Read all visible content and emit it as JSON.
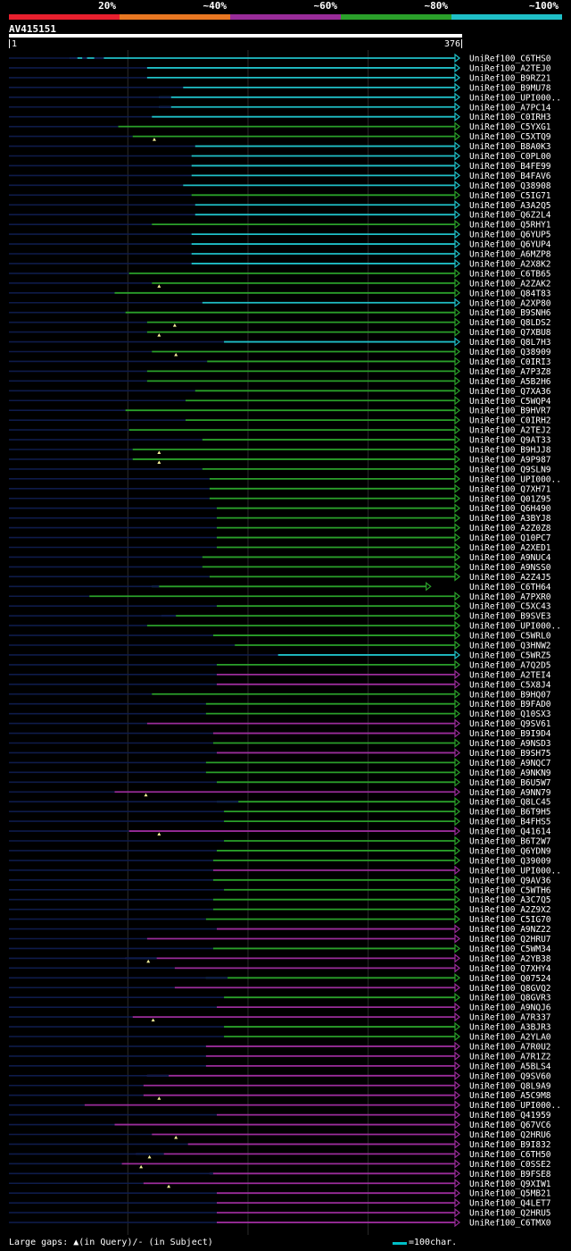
{
  "legend": [
    {
      "label": "20%",
      "color": "#e8202e"
    },
    {
      "label": "~40%",
      "color": "#e87722"
    },
    {
      "label": "~60%",
      "color": "#9a2c9a"
    },
    {
      "label": "~80%",
      "color": "#2aa02a"
    },
    {
      "label": "~100%",
      "color": "#1fbfc7"
    }
  ],
  "query": {
    "id": "AV415151",
    "start": "1",
    "end": "376",
    "length": 376
  },
  "hits": [
    {
      "name": "UniRef100_C6THS0",
      "start": 52,
      "end": 376,
      "color": "cyan",
      "gaps": [
        [
          52,
          58
        ],
        [
          62,
          66
        ],
        [
          72,
          80
        ]
      ],
      "qgap": []
    },
    {
      "name": "UniRef100_A2TEJ0",
      "start": 116,
      "end": 376,
      "color": "cyan",
      "gaps": [],
      "qgap": []
    },
    {
      "name": "UniRef100_B9RZ21",
      "start": 116,
      "end": 376,
      "color": "cyan",
      "gaps": [],
      "qgap": []
    },
    {
      "name": "UniRef100_B9MU78",
      "start": 146,
      "end": 376,
      "color": "cyan",
      "gaps": [],
      "qgap": []
    },
    {
      "name": "UniRef100_UPI000..",
      "start": 126,
      "end": 376,
      "color": "cyan",
      "gaps": [
        [
          126,
          136
        ]
      ],
      "qgap": []
    },
    {
      "name": "UniRef100_A7PC14",
      "start": 126,
      "end": 376,
      "color": "cyan",
      "gaps": [
        [
          126,
          136
        ]
      ],
      "qgap": []
    },
    {
      "name": "UniRef100_C0IRH3",
      "start": 120,
      "end": 376,
      "color": "cyan",
      "gaps": [],
      "qgap": []
    },
    {
      "name": "UniRef100_C5YXG1",
      "start": 92,
      "end": 376,
      "color": "green",
      "gaps": [],
      "qgap": []
    },
    {
      "name": "UniRef100_C5XTQ9",
      "start": 104,
      "end": 376,
      "color": "green",
      "gaps": [],
      "qgap": [
        122
      ]
    },
    {
      "name": "UniRef100_B8A0K3",
      "start": 156,
      "end": 376,
      "color": "cyan",
      "gaps": [],
      "qgap": []
    },
    {
      "name": "UniRef100_C0PL00",
      "start": 153,
      "end": 376,
      "color": "cyan",
      "gaps": [],
      "qgap": []
    },
    {
      "name": "UniRef100_B4FE99",
      "start": 153,
      "end": 376,
      "color": "cyan",
      "gaps": [],
      "qgap": []
    },
    {
      "name": "UniRef100_B4FAV6",
      "start": 153,
      "end": 376,
      "color": "cyan",
      "gaps": [],
      "qgap": []
    },
    {
      "name": "UniRef100_Q38908",
      "start": 146,
      "end": 376,
      "color": "cyan",
      "gaps": [],
      "qgap": []
    },
    {
      "name": "UniRef100_C5IG71",
      "start": 153,
      "end": 376,
      "color": "green",
      "gaps": [],
      "qgap": []
    },
    {
      "name": "UniRef100_A3A2Q5",
      "start": 156,
      "end": 376,
      "color": "cyan",
      "gaps": [],
      "qgap": []
    },
    {
      "name": "UniRef100_Q6Z2L4",
      "start": 156,
      "end": 376,
      "color": "cyan",
      "gaps": [],
      "qgap": []
    },
    {
      "name": "UniRef100_Q5RHY1",
      "start": 120,
      "end": 376,
      "color": "green",
      "gaps": [],
      "qgap": []
    },
    {
      "name": "UniRef100_Q6YUP5",
      "start": 153,
      "end": 376,
      "color": "cyan",
      "gaps": [],
      "qgap": []
    },
    {
      "name": "UniRef100_Q6YUP4",
      "start": 153,
      "end": 376,
      "color": "cyan",
      "gaps": [],
      "qgap": []
    },
    {
      "name": "UniRef100_A6MZP8",
      "start": 153,
      "end": 376,
      "color": "cyan",
      "gaps": [],
      "qgap": []
    },
    {
      "name": "UniRef100_A2X8K2",
      "start": 153,
      "end": 376,
      "color": "cyan",
      "gaps": [],
      "qgap": []
    },
    {
      "name": "UniRef100_C6TB65",
      "start": 101,
      "end": 376,
      "color": "green",
      "gaps": [],
      "qgap": []
    },
    {
      "name": "UniRef100_A2ZAK2",
      "start": 120,
      "end": 376,
      "color": "green",
      "gaps": [],
      "qgap": [
        126
      ]
    },
    {
      "name": "UniRef100_Q84T83",
      "start": 89,
      "end": 376,
      "color": "green",
      "gaps": [],
      "qgap": []
    },
    {
      "name": "UniRef100_A2XP80",
      "start": 162,
      "end": 376,
      "color": "cyan",
      "gaps": [],
      "qgap": []
    },
    {
      "name": "UniRef100_B9SNH6",
      "start": 98,
      "end": 376,
      "color": "green",
      "gaps": [],
      "qgap": []
    },
    {
      "name": "UniRef100_Q8LDS2",
      "start": 116,
      "end": 376,
      "color": "green",
      "gaps": [],
      "qgap": [
        139
      ]
    },
    {
      "name": "UniRef100_Q7XBU8",
      "start": 116,
      "end": 376,
      "color": "green",
      "gaps": [],
      "qgap": [
        126
      ]
    },
    {
      "name": "UniRef100_Q8L7H3",
      "start": 180,
      "end": 376,
      "color": "cyan",
      "gaps": [],
      "qgap": []
    },
    {
      "name": "UniRef100_Q38909",
      "start": 120,
      "end": 376,
      "color": "green",
      "gaps": [],
      "qgap": [
        140
      ]
    },
    {
      "name": "UniRef100_C0IRI3",
      "start": 166,
      "end": 376,
      "color": "green",
      "gaps": [],
      "qgap": []
    },
    {
      "name": "UniRef100_A7P3Z8",
      "start": 116,
      "end": 376,
      "color": "green",
      "gaps": [],
      "qgap": []
    },
    {
      "name": "UniRef100_A5B2H6",
      "start": 116,
      "end": 376,
      "color": "green",
      "gaps": [],
      "qgap": []
    },
    {
      "name": "UniRef100_Q7XA36",
      "start": 156,
      "end": 376,
      "color": "green",
      "gaps": [],
      "qgap": []
    },
    {
      "name": "UniRef100_C5WQP4",
      "start": 148,
      "end": 376,
      "color": "green",
      "gaps": [],
      "qgap": []
    },
    {
      "name": "UniRef100_B9HVR7",
      "start": 98,
      "end": 376,
      "color": "green",
      "gaps": [],
      "qgap": []
    },
    {
      "name": "UniRef100_C0IRH2",
      "start": 148,
      "end": 376,
      "color": "green",
      "gaps": [],
      "qgap": []
    },
    {
      "name": "UniRef100_A2TEJ2",
      "start": 101,
      "end": 376,
      "color": "green",
      "gaps": [],
      "qgap": []
    },
    {
      "name": "UniRef100_Q9AT33",
      "start": 162,
      "end": 376,
      "color": "green",
      "gaps": [],
      "qgap": []
    },
    {
      "name": "UniRef100_B9HJJ8",
      "start": 104,
      "end": 376,
      "color": "green",
      "gaps": [],
      "qgap": [
        126
      ]
    },
    {
      "name": "UniRef100_A9P987",
      "start": 104,
      "end": 376,
      "color": "green",
      "gaps": [],
      "qgap": [
        126
      ]
    },
    {
      "name": "UniRef100_Q9SLN9",
      "start": 162,
      "end": 376,
      "color": "green",
      "gaps": [],
      "qgap": []
    },
    {
      "name": "UniRef100_UPI000..",
      "start": 168,
      "end": 376,
      "color": "green",
      "gaps": [],
      "qgap": []
    },
    {
      "name": "UniRef100_Q7XH71",
      "start": 168,
      "end": 376,
      "color": "green",
      "gaps": [],
      "qgap": []
    },
    {
      "name": "UniRef100_Q01Z95",
      "start": 168,
      "end": 376,
      "color": "green",
      "gaps": [],
      "qgap": []
    },
    {
      "name": "UniRef100_Q6H490",
      "start": 174,
      "end": 376,
      "color": "green",
      "gaps": [],
      "qgap": []
    },
    {
      "name": "UniRef100_A3BYJ8",
      "start": 174,
      "end": 376,
      "color": "green",
      "gaps": [],
      "qgap": []
    },
    {
      "name": "UniRef100_A2Z0Z8",
      "start": 174,
      "end": 376,
      "color": "green",
      "gaps": [],
      "qgap": []
    },
    {
      "name": "UniRef100_Q10PC7",
      "start": 174,
      "end": 376,
      "color": "green",
      "gaps": [],
      "qgap": []
    },
    {
      "name": "UniRef100_A2XED1",
      "start": 174,
      "end": 376,
      "color": "green",
      "gaps": [],
      "qgap": []
    },
    {
      "name": "UniRef100_A9NUC4",
      "start": 162,
      "end": 376,
      "color": "green",
      "gaps": [],
      "qgap": []
    },
    {
      "name": "UniRef100_A9NSS0",
      "start": 162,
      "end": 376,
      "color": "green",
      "gaps": [],
      "qgap": []
    },
    {
      "name": "UniRef100_A2Z4J5",
      "start": 168,
      "end": 376,
      "color": "green",
      "gaps": [],
      "qgap": []
    },
    {
      "name": "UniRef100_C6TH64",
      "start": 120,
      "end": 352,
      "color": "green",
      "gaps": [
        [
          120,
          126
        ]
      ],
      "qgap": []
    },
    {
      "name": "UniRef100_A7PXR0",
      "start": 68,
      "end": 376,
      "color": "green",
      "gaps": [],
      "qgap": []
    },
    {
      "name": "UniRef100_C5XC43",
      "start": 174,
      "end": 376,
      "color": "green",
      "gaps": [],
      "qgap": []
    },
    {
      "name": "UniRef100_B9SVE3",
      "start": 128,
      "end": 376,
      "color": "green",
      "gaps": [
        [
          128,
          140
        ]
      ],
      "qgap": []
    },
    {
      "name": "UniRef100_UPI000..",
      "start": 116,
      "end": 376,
      "color": "green",
      "gaps": [],
      "qgap": []
    },
    {
      "name": "UniRef100_C5WRL0",
      "start": 171,
      "end": 376,
      "color": "green",
      "gaps": [],
      "qgap": []
    },
    {
      "name": "UniRef100_Q3HNW2",
      "start": 189,
      "end": 376,
      "color": "green",
      "gaps": [],
      "qgap": []
    },
    {
      "name": "UniRef100_C5WRZ5",
      "start": 225,
      "end": 376,
      "color": "cyan",
      "gaps": [],
      "qgap": []
    },
    {
      "name": "UniRef100_A7Q2D5",
      "start": 174,
      "end": 376,
      "color": "green",
      "gaps": [],
      "qgap": []
    },
    {
      "name": "UniRef100_A2TEI4",
      "start": 174,
      "end": 376,
      "color": "purple",
      "gaps": [],
      "qgap": []
    },
    {
      "name": "UniRef100_C5X8J4",
      "start": 174,
      "end": 376,
      "color": "purple",
      "gaps": [],
      "qgap": []
    },
    {
      "name": "UniRef100_B9HQ07",
      "start": 120,
      "end": 376,
      "color": "green",
      "gaps": [],
      "qgap": []
    },
    {
      "name": "UniRef100_B9FAD0",
      "start": 165,
      "end": 376,
      "color": "green",
      "gaps": [],
      "qgap": []
    },
    {
      "name": "UniRef100_Q10SX3",
      "start": 165,
      "end": 376,
      "color": "green",
      "gaps": [],
      "qgap": []
    },
    {
      "name": "UniRef100_Q9SV61",
      "start": 116,
      "end": 376,
      "color": "purple",
      "gaps": [],
      "qgap": []
    },
    {
      "name": "UniRef100_B9I9D4",
      "start": 171,
      "end": 376,
      "color": "purple",
      "gaps": [],
      "qgap": []
    },
    {
      "name": "UniRef100_A9NSD3",
      "start": 171,
      "end": 376,
      "color": "green",
      "gaps": [],
      "qgap": []
    },
    {
      "name": "UniRef100_B9SH75",
      "start": 174,
      "end": 376,
      "color": "purple",
      "gaps": [],
      "qgap": []
    },
    {
      "name": "UniRef100_A9NQC7",
      "start": 165,
      "end": 376,
      "color": "green",
      "gaps": [],
      "qgap": []
    },
    {
      "name": "UniRef100_A9NKN9",
      "start": 165,
      "end": 376,
      "color": "green",
      "gaps": [],
      "qgap": []
    },
    {
      "name": "UniRef100_B6U5W7",
      "start": 174,
      "end": 376,
      "color": "green",
      "gaps": [],
      "qgap": []
    },
    {
      "name": "UniRef100_A9NN79",
      "start": 89,
      "end": 376,
      "color": "purple",
      "gaps": [],
      "qgap": [
        115
      ]
    },
    {
      "name": "UniRef100_Q8LC45",
      "start": 174,
      "end": 376,
      "color": "green",
      "gaps": [
        [
          174,
          192
        ]
      ],
      "qgap": []
    },
    {
      "name": "UniRef100_B6T9H5",
      "start": 180,
      "end": 376,
      "color": "green",
      "gaps": [],
      "qgap": []
    },
    {
      "name": "UniRef100_B4FHS5",
      "start": 180,
      "end": 376,
      "color": "green",
      "gaps": [],
      "qgap": []
    },
    {
      "name": "UniRef100_Q41614",
      "start": 101,
      "end": 376,
      "color": "purple",
      "gaps": [],
      "qgap": [
        126
      ]
    },
    {
      "name": "UniRef100_B6T2W7",
      "start": 180,
      "end": 376,
      "color": "green",
      "gaps": [],
      "qgap": []
    },
    {
      "name": "UniRef100_Q6YDN9",
      "start": 174,
      "end": 376,
      "color": "green",
      "gaps": [],
      "qgap": []
    },
    {
      "name": "UniRef100_Q39009",
      "start": 171,
      "end": 376,
      "color": "green",
      "gaps": [],
      "qgap": []
    },
    {
      "name": "UniRef100_UPI000..",
      "start": 171,
      "end": 376,
      "color": "purple",
      "gaps": [],
      "qgap": []
    },
    {
      "name": "UniRef100_Q9AV36",
      "start": 171,
      "end": 376,
      "color": "green",
      "gaps": [],
      "qgap": []
    },
    {
      "name": "UniRef100_C5WTH6",
      "start": 180,
      "end": 376,
      "color": "green",
      "gaps": [],
      "qgap": []
    },
    {
      "name": "UniRef100_A3C7Q5",
      "start": 171,
      "end": 376,
      "color": "green",
      "gaps": [],
      "qgap": []
    },
    {
      "name": "UniRef100_A2Z9X2",
      "start": 171,
      "end": 376,
      "color": "green",
      "gaps": [],
      "qgap": []
    },
    {
      "name": "UniRef100_C5IG70",
      "start": 165,
      "end": 376,
      "color": "green",
      "gaps": [],
      "qgap": []
    },
    {
      "name": "UniRef100_A9NZ22",
      "start": 174,
      "end": 376,
      "color": "purple",
      "gaps": [],
      "qgap": []
    },
    {
      "name": "UniRef100_Q2HRU7",
      "start": 116,
      "end": 376,
      "color": "purple",
      "gaps": [],
      "qgap": []
    },
    {
      "name": "UniRef100_C5WM34",
      "start": 171,
      "end": 376,
      "color": "green",
      "gaps": [],
      "qgap": []
    },
    {
      "name": "UniRef100_A2YB38",
      "start": 98,
      "end": 376,
      "color": "purple",
      "gaps": [
        [
          98,
          124
        ]
      ],
      "qgap": [
        117
      ]
    },
    {
      "name": "UniRef100_Q7XHY4",
      "start": 139,
      "end": 376,
      "color": "purple",
      "gaps": [],
      "qgap": []
    },
    {
      "name": "UniRef100_Q07524",
      "start": 165,
      "end": 376,
      "color": "green",
      "gaps": [
        [
          165,
          183
        ]
      ],
      "qgap": []
    },
    {
      "name": "UniRef100_Q8GVQ2",
      "start": 139,
      "end": 376,
      "color": "purple",
      "gaps": [],
      "qgap": []
    },
    {
      "name": "UniRef100_Q8GVR3",
      "start": 180,
      "end": 376,
      "color": "green",
      "gaps": [],
      "qgap": []
    },
    {
      "name": "UniRef100_A9NQJ6",
      "start": 174,
      "end": 376,
      "color": "purple",
      "gaps": [],
      "qgap": []
    },
    {
      "name": "UniRef100_A7R337",
      "start": 104,
      "end": 376,
      "color": "purple",
      "gaps": [],
      "qgap": [
        121
      ]
    },
    {
      "name": "UniRef100_A3BJR3",
      "start": 180,
      "end": 376,
      "color": "green",
      "gaps": [],
      "qgap": []
    },
    {
      "name": "UniRef100_A2YLA0",
      "start": 180,
      "end": 376,
      "color": "green",
      "gaps": [],
      "qgap": []
    },
    {
      "name": "UniRef100_A7R0U2",
      "start": 165,
      "end": 376,
      "color": "purple",
      "gaps": [],
      "qgap": []
    },
    {
      "name": "UniRef100_A7R1Z2",
      "start": 165,
      "end": 376,
      "color": "purple",
      "gaps": [],
      "qgap": []
    },
    {
      "name": "UniRef100_A5BLS4",
      "start": 165,
      "end": 376,
      "color": "purple",
      "gaps": [],
      "qgap": []
    },
    {
      "name": "UniRef100_Q9SV60",
      "start": 116,
      "end": 376,
      "color": "purple",
      "gaps": [
        [
          116,
          134
        ]
      ],
      "qgap": []
    },
    {
      "name": "UniRef100_Q8L9A9",
      "start": 113,
      "end": 376,
      "color": "purple",
      "gaps": [],
      "qgap": []
    },
    {
      "name": "UniRef100_A5C9M8",
      "start": 113,
      "end": 376,
      "color": "purple",
      "gaps": [],
      "qgap": [
        126
      ]
    },
    {
      "name": "UniRef100_UPI000..",
      "start": 64,
      "end": 376,
      "color": "purple",
      "gaps": [],
      "qgap": []
    },
    {
      "name": "UniRef100_Q41959",
      "start": 174,
      "end": 376,
      "color": "purple",
      "gaps": [],
      "qgap": []
    },
    {
      "name": "UniRef100_Q67VC6",
      "start": 89,
      "end": 376,
      "color": "purple",
      "gaps": [],
      "qgap": []
    },
    {
      "name": "UniRef100_Q2HRU6",
      "start": 120,
      "end": 376,
      "color": "purple",
      "gaps": [],
      "qgap": [
        140
      ]
    },
    {
      "name": "UniRef100_B9I832",
      "start": 150,
      "end": 376,
      "color": "purple",
      "gaps": [],
      "qgap": []
    },
    {
      "name": "UniRef100_C6TH50",
      "start": 107,
      "end": 376,
      "color": "purple",
      "gaps": [
        [
          107,
          130
        ]
      ],
      "qgap": [
        118
      ]
    },
    {
      "name": "UniRef100_C0SSE2",
      "start": 95,
      "end": 376,
      "color": "purple",
      "gaps": [],
      "qgap": [
        111
      ]
    },
    {
      "name": "UniRef100_B9FSE8",
      "start": 168,
      "end": 376,
      "color": "purple",
      "gaps": [
        [
          168,
          171
        ]
      ],
      "qgap": []
    },
    {
      "name": "UniRef100_Q9XIW1",
      "start": 113,
      "end": 376,
      "color": "purple",
      "gaps": [],
      "qgap": [
        134
      ]
    },
    {
      "name": "UniRef100_Q5MB21",
      "start": 174,
      "end": 376,
      "color": "purple",
      "gaps": [],
      "qgap": []
    },
    {
      "name": "UniRef100_Q4LET7",
      "start": 174,
      "end": 376,
      "color": "purple",
      "gaps": [],
      "qgap": []
    },
    {
      "name": "UniRef100_Q2HRU5",
      "start": 174,
      "end": 376,
      "color": "purple",
      "gaps": [],
      "qgap": []
    },
    {
      "name": "UniRef100_C6TMX0",
      "start": 174,
      "end": 376,
      "color": "purple",
      "gaps": [],
      "qgap": []
    }
  ],
  "colors": {
    "cyan": "#1fbfc7",
    "green": "#2aa02a",
    "purple": "#9a2c9a",
    "dim": "#0e1b4a",
    "guide": "#2b2b2b"
  },
  "footer": {
    "gaps_text": "Large gaps: ▲(in Query)/- (in Subject)",
    "scale_text": "=100char."
  }
}
